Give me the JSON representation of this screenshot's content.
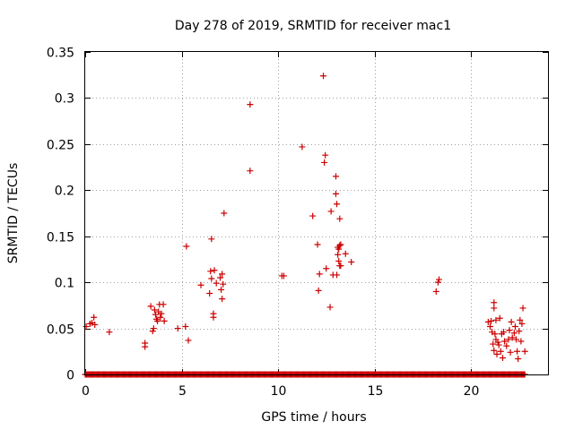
{
  "chart_data": {
    "type": "scatter",
    "title": "Day 278 of 2019, SRMTID for receiver mac1",
    "xlabel": "GPS time / hours",
    "ylabel": "SRMTID / TECUs",
    "xlim": [
      0,
      24
    ],
    "ylim": [
      0,
      0.35
    ],
    "xticks": [
      {
        "value": 0,
        "label": "0"
      },
      {
        "value": 5,
        "label": "5"
      },
      {
        "value": 10,
        "label": "10"
      },
      {
        "value": 15,
        "label": "15"
      },
      {
        "value": 20,
        "label": "20"
      }
    ],
    "yticks": [
      {
        "value": 0,
        "label": "0"
      },
      {
        "value": 0.05,
        "label": "0.05"
      },
      {
        "value": 0.1,
        "label": "0.1"
      },
      {
        "value": 0.15,
        "label": "0.15"
      },
      {
        "value": 0.2,
        "label": "0.2"
      },
      {
        "value": 0.25,
        "label": "0.25"
      },
      {
        "value": 0.3,
        "label": "0.3"
      },
      {
        "value": 0.35,
        "label": "0.35"
      }
    ],
    "grid": true,
    "marker": "+",
    "color": "#cc0000",
    "baseline_zero_x_range": [
      0,
      22.8
    ],
    "series": [
      {
        "name": "mac1",
        "points": [
          [
            0.05,
            0.052
          ],
          [
            0.25,
            0.055
          ],
          [
            0.35,
            0.056
          ],
          [
            0.45,
            0.062
          ],
          [
            0.5,
            0.054
          ],
          [
            1.25,
            0.046
          ],
          [
            3.1,
            0.034
          ],
          [
            3.1,
            0.03
          ],
          [
            3.4,
            0.074
          ],
          [
            3.5,
            0.047
          ],
          [
            3.55,
            0.05
          ],
          [
            3.6,
            0.07
          ],
          [
            3.65,
            0.065
          ],
          [
            3.7,
            0.06
          ],
          [
            3.75,
            0.058
          ],
          [
            3.8,
            0.068
          ],
          [
            3.85,
            0.076
          ],
          [
            3.9,
            0.062
          ],
          [
            3.95,
            0.066
          ],
          [
            4.05,
            0.076
          ],
          [
            4.1,
            0.058
          ],
          [
            4.8,
            0.05
          ],
          [
            5.2,
            0.052
          ],
          [
            5.25,
            0.139
          ],
          [
            5.35,
            0.037
          ],
          [
            6.0,
            0.097
          ],
          [
            6.45,
            0.088
          ],
          [
            6.5,
            0.112
          ],
          [
            6.55,
            0.104
          ],
          [
            6.55,
            0.147
          ],
          [
            6.65,
            0.066
          ],
          [
            6.65,
            0.062
          ],
          [
            6.7,
            0.113
          ],
          [
            6.8,
            0.099
          ],
          [
            7.0,
            0.105
          ],
          [
            7.05,
            0.092
          ],
          [
            7.1,
            0.082
          ],
          [
            7.1,
            0.109
          ],
          [
            7.15,
            0.098
          ],
          [
            7.2,
            0.175
          ],
          [
            8.55,
            0.293
          ],
          [
            8.55,
            0.221
          ],
          [
            10.2,
            0.107
          ],
          [
            10.3,
            0.107
          ],
          [
            11.25,
            0.247
          ],
          [
            11.8,
            0.172
          ],
          [
            12.05,
            0.141
          ],
          [
            12.1,
            0.091
          ],
          [
            12.15,
            0.109
          ],
          [
            12.35,
            0.324
          ],
          [
            12.4,
            0.23
          ],
          [
            12.45,
            0.238
          ],
          [
            12.5,
            0.115
          ],
          [
            12.7,
            0.073
          ],
          [
            12.75,
            0.177
          ],
          [
            12.85,
            0.108
          ],
          [
            13.0,
            0.215
          ],
          [
            13.0,
            0.196
          ],
          [
            13.05,
            0.185
          ],
          [
            13.05,
            0.108
          ],
          [
            13.1,
            0.138
          ],
          [
            13.1,
            0.13
          ],
          [
            13.15,
            0.136
          ],
          [
            13.15,
            0.123
          ],
          [
            13.2,
            0.169
          ],
          [
            13.2,
            0.14
          ],
          [
            13.2,
            0.118
          ],
          [
            13.25,
            0.118
          ],
          [
            13.25,
            0.141
          ],
          [
            13.5,
            0.131
          ],
          [
            13.8,
            0.122
          ],
          [
            18.2,
            0.09
          ],
          [
            18.3,
            0.1
          ],
          [
            18.35,
            0.103
          ],
          [
            20.9,
            0.057
          ],
          [
            21.0,
            0.052
          ],
          [
            21.05,
            0.058
          ],
          [
            21.1,
            0.046
          ],
          [
            21.15,
            0.033
          ],
          [
            21.2,
            0.078
          ],
          [
            21.2,
            0.072
          ],
          [
            21.2,
            0.026
          ],
          [
            21.25,
            0.044
          ],
          [
            21.3,
            0.059
          ],
          [
            21.3,
            0.038
          ],
          [
            21.35,
            0.022
          ],
          [
            21.4,
            0.035
          ],
          [
            21.45,
            0.032
          ],
          [
            21.5,
            0.061
          ],
          [
            21.55,
            0.025
          ],
          [
            21.6,
            0.044
          ],
          [
            21.65,
            0.018
          ],
          [
            21.7,
            0.046
          ],
          [
            21.75,
            0.036
          ],
          [
            21.85,
            0.031
          ],
          [
            21.95,
            0.038
          ],
          [
            22.0,
            0.048
          ],
          [
            22.05,
            0.024
          ],
          [
            22.1,
            0.057
          ],
          [
            22.15,
            0.04
          ],
          [
            22.25,
            0.045
          ],
          [
            22.3,
            0.052
          ],
          [
            22.35,
            0.038
          ],
          [
            22.4,
            0.025
          ],
          [
            22.45,
            0.017
          ],
          [
            22.5,
            0.047
          ],
          [
            22.55,
            0.059
          ],
          [
            22.6,
            0.036
          ],
          [
            22.7,
            0.072
          ],
          [
            22.8,
            0.025
          ],
          [
            22.65,
            0.055
          ]
        ]
      }
    ]
  }
}
